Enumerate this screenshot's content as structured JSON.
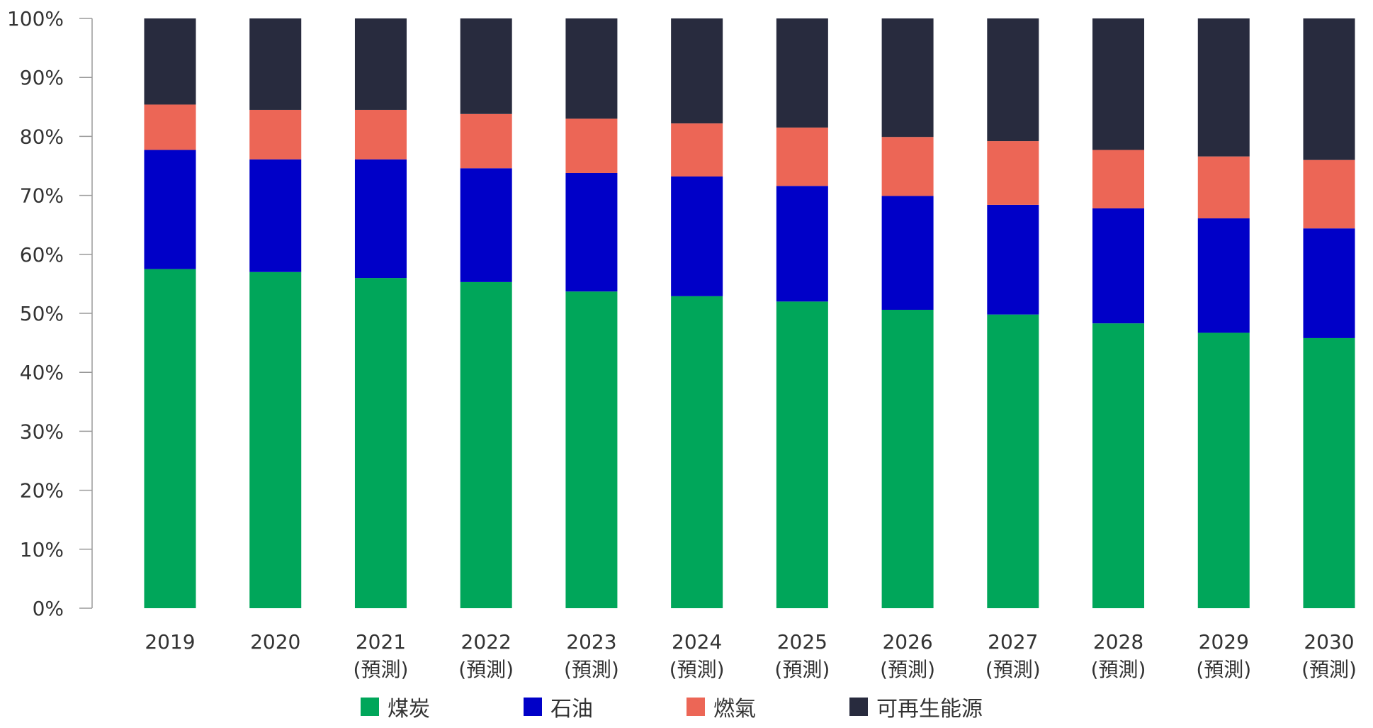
{
  "chart_data": {
    "type": "bar",
    "stacked": true,
    "categories": [
      "2019",
      "2020",
      "2021",
      "2022",
      "2023",
      "2024",
      "2025",
      "2026",
      "2027",
      "2028",
      "2029",
      "2030"
    ],
    "category_sublabels": [
      "",
      "",
      "(預測)",
      "(預測)",
      "(預測)",
      "(預測)",
      "(預測)",
      "(預測)",
      "(預測)",
      "(預測)",
      "(預測)",
      "(預測)"
    ],
    "y_ticks": [
      "0%",
      "10%",
      "20%",
      "30%",
      "40%",
      "50%",
      "60%",
      "70%",
      "80%",
      "90%",
      "100%"
    ],
    "ylim": [
      0,
      100
    ],
    "series": [
      {
        "name": "煤炭",
        "color": "#00a65a",
        "values": [
          57.5,
          57.0,
          56.0,
          55.3,
          53.7,
          52.9,
          52.0,
          50.6,
          49.8,
          48.3,
          46.7,
          45.8
        ]
      },
      {
        "name": "石油",
        "color": "#0000c8",
        "values": [
          20.2,
          19.1,
          20.1,
          19.3,
          20.1,
          20.3,
          19.6,
          19.3,
          18.6,
          19.5,
          19.4,
          18.6
        ]
      },
      {
        "name": "燃氣",
        "color": "#ec6656",
        "values": [
          7.7,
          8.4,
          8.4,
          9.2,
          9.2,
          9.0,
          9.9,
          10.0,
          10.8,
          9.9,
          10.5,
          11.6
        ]
      },
      {
        "name": "可再生能源",
        "color": "#282b3e",
        "values": [
          14.6,
          15.5,
          15.5,
          16.2,
          17.0,
          17.8,
          18.5,
          20.1,
          20.8,
          22.3,
          23.4,
          24.0
        ]
      }
    ],
    "legend_position": "bottom",
    "grid": false
  }
}
